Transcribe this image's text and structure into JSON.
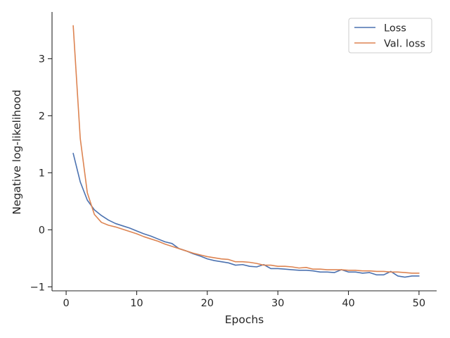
{
  "chart_data": {
    "type": "line",
    "xlabel": "Epochs",
    "ylabel": "Negative log-likelihood",
    "xlim": [
      -2,
      52.5
    ],
    "ylim": [
      -1.07,
      3.82
    ],
    "xticks": [
      0,
      10,
      20,
      30,
      40,
      50
    ],
    "yticks": [
      -1,
      0,
      1,
      2,
      3
    ],
    "xtick_labels": [
      "0",
      "10",
      "20",
      "30",
      "40",
      "50"
    ],
    "ytick_labels": [
      "−1",
      "0",
      "1",
      "2",
      "3"
    ],
    "grid": false,
    "legend": {
      "position": "top-right"
    },
    "x": [
      1,
      2,
      3,
      4,
      5,
      6,
      7,
      8,
      9,
      10,
      11,
      12,
      13,
      14,
      15,
      16,
      17,
      18,
      19,
      20,
      21,
      22,
      23,
      24,
      25,
      26,
      27,
      28,
      29,
      30,
      31,
      32,
      33,
      34,
      35,
      36,
      37,
      38,
      39,
      40,
      41,
      42,
      43,
      44,
      45,
      46,
      47,
      48,
      49,
      50
    ],
    "series": [
      {
        "name": "Loss",
        "color": "#4c72b0",
        "values": [
          1.34,
          0.84,
          0.52,
          0.35,
          0.25,
          0.17,
          0.11,
          0.07,
          0.03,
          -0.02,
          -0.07,
          -0.11,
          -0.16,
          -0.21,
          -0.24,
          -0.33,
          -0.37,
          -0.42,
          -0.46,
          -0.51,
          -0.54,
          -0.56,
          -0.58,
          -0.62,
          -0.61,
          -0.64,
          -0.65,
          -0.61,
          -0.68,
          -0.68,
          -0.69,
          -0.7,
          -0.71,
          -0.71,
          -0.72,
          -0.74,
          -0.74,
          -0.75,
          -0.7,
          -0.74,
          -0.74,
          -0.76,
          -0.75,
          -0.79,
          -0.79,
          -0.73,
          -0.81,
          -0.83,
          -0.81,
          -0.81
        ]
      },
      {
        "name": "Val. loss",
        "color": "#dd8452",
        "values": [
          3.58,
          1.6,
          0.65,
          0.27,
          0.13,
          0.08,
          0.05,
          0.01,
          -0.03,
          -0.07,
          -0.12,
          -0.16,
          -0.2,
          -0.25,
          -0.29,
          -0.33,
          -0.37,
          -0.41,
          -0.44,
          -0.47,
          -0.49,
          -0.51,
          -0.52,
          -0.56,
          -0.56,
          -0.57,
          -0.59,
          -0.62,
          -0.62,
          -0.64,
          -0.64,
          -0.65,
          -0.67,
          -0.66,
          -0.69,
          -0.69,
          -0.7,
          -0.7,
          -0.7,
          -0.71,
          -0.71,
          -0.72,
          -0.72,
          -0.73,
          -0.73,
          -0.74,
          -0.74,
          -0.75,
          -0.76,
          -0.76
        ]
      }
    ]
  }
}
